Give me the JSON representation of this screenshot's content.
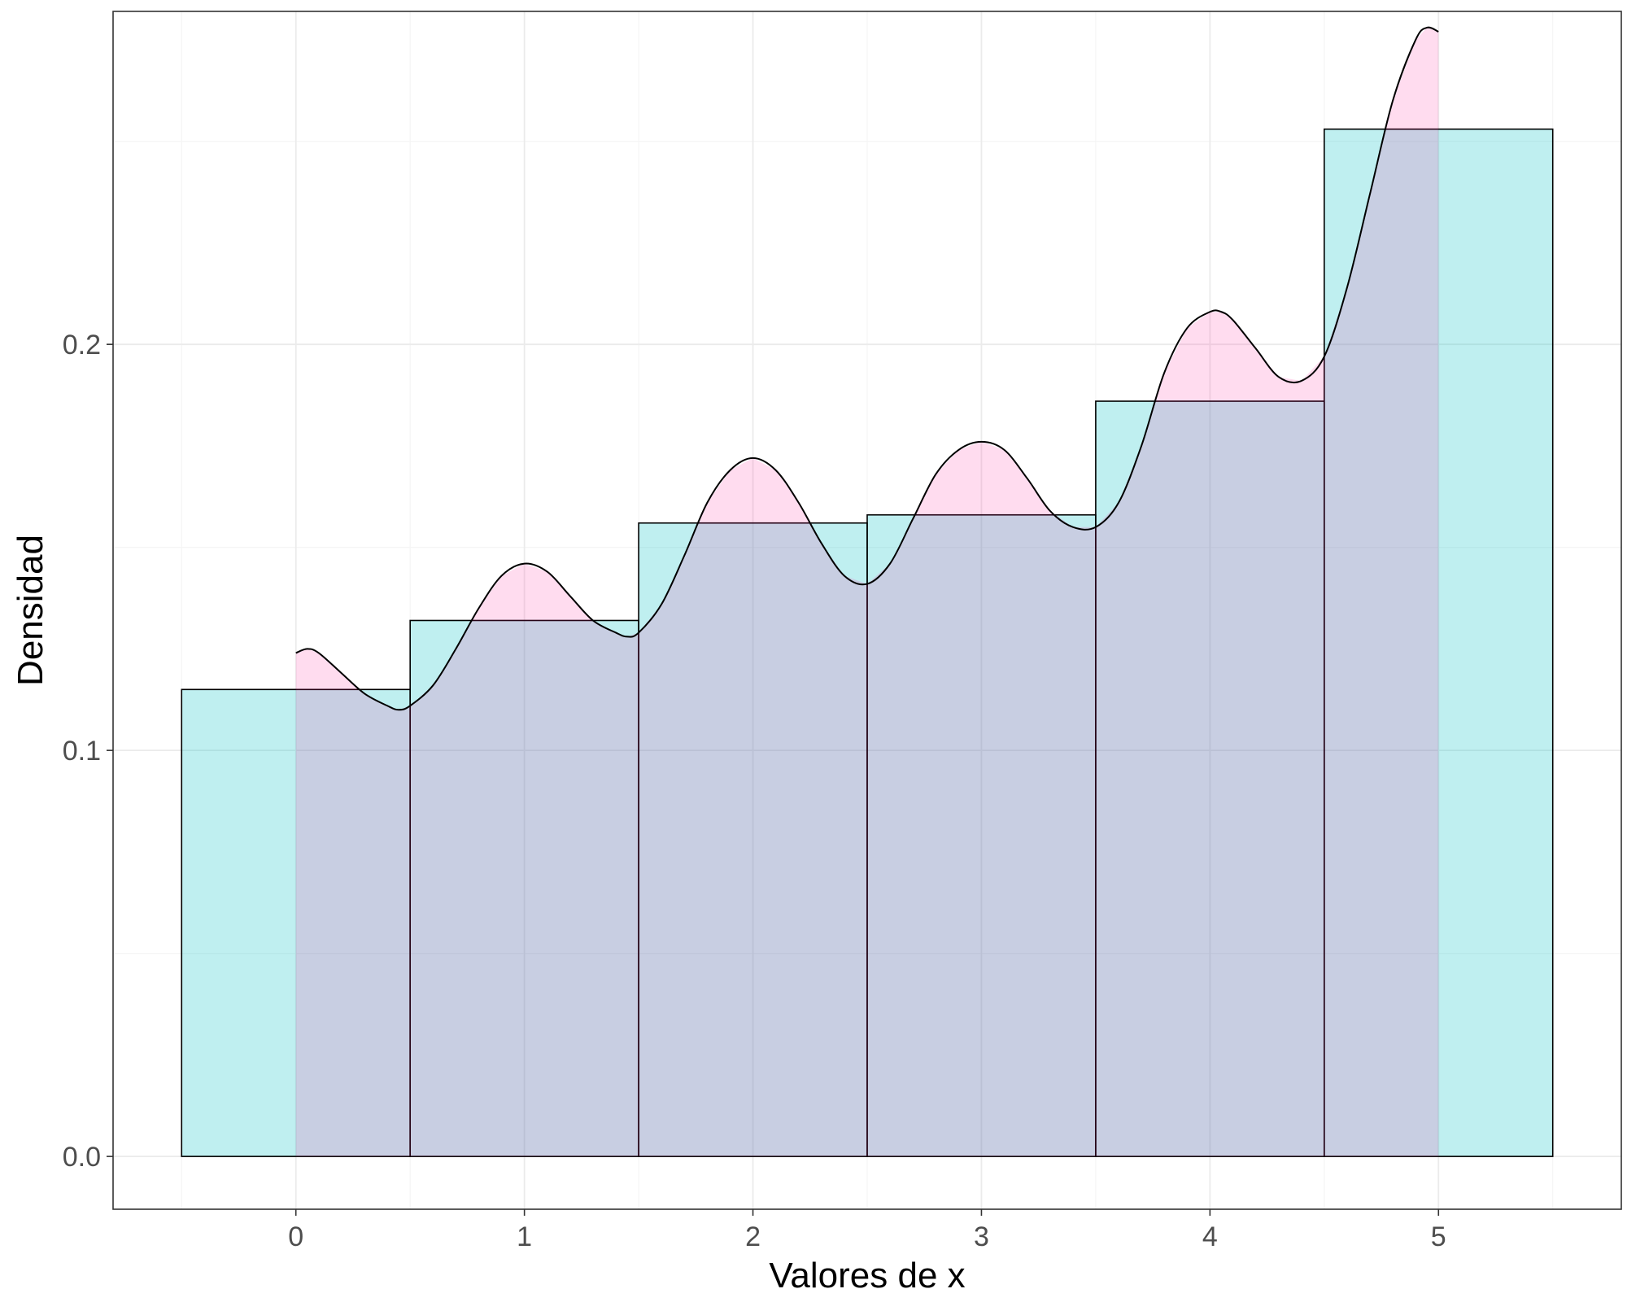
{
  "chart_data": {
    "type": "bar",
    "subtype": "histogram-with-density",
    "xlabel": "Valores de x",
    "ylabel": "Densidad",
    "xlim": [
      -0.8,
      5.8
    ],
    "ylim": [
      -0.013,
      0.282
    ],
    "x_ticks": [
      0,
      1,
      2,
      3,
      4,
      5
    ],
    "x_tick_labels": [
      "0",
      "1",
      "2",
      "3",
      "4",
      "5"
    ],
    "y_ticks": [
      0.0,
      0.1,
      0.2
    ],
    "y_tick_labels": [
      "0.0",
      "0.1",
      "0.2"
    ],
    "grid": true,
    "histogram": {
      "bins": [
        {
          "x": 0,
          "density": 0.115
        },
        {
          "x": 1,
          "density": 0.132
        },
        {
          "x": 2,
          "density": 0.156
        },
        {
          "x": 3,
          "density": 0.158
        },
        {
          "x": 4,
          "density": 0.186
        },
        {
          "x": 5,
          "density": 0.253
        }
      ],
      "binwidth": 1,
      "fill": "#00BFC4",
      "fill_opacity": 0.25,
      "stroke": "#000000"
    },
    "density": {
      "x": [
        0.0,
        0.05,
        0.1,
        0.2,
        0.3,
        0.4,
        0.45,
        0.5,
        0.6,
        0.7,
        0.8,
        0.9,
        1.0,
        1.1,
        1.2,
        1.3,
        1.4,
        1.45,
        1.5,
        1.6,
        1.7,
        1.8,
        1.9,
        2.0,
        2.1,
        2.2,
        2.3,
        2.4,
        2.5,
        2.6,
        2.7,
        2.8,
        2.9,
        3.0,
        3.1,
        3.2,
        3.3,
        3.4,
        3.5,
        3.6,
        3.7,
        3.8,
        3.9,
        4.0,
        4.05,
        4.1,
        4.2,
        4.3,
        4.4,
        4.5,
        4.6,
        4.7,
        4.8,
        4.9,
        4.95,
        5.0
      ],
      "y": [
        0.124,
        0.125,
        0.124,
        0.119,
        0.114,
        0.111,
        0.11,
        0.111,
        0.116,
        0.125,
        0.135,
        0.143,
        0.146,
        0.144,
        0.138,
        0.132,
        0.129,
        0.128,
        0.129,
        0.136,
        0.148,
        0.161,
        0.169,
        0.172,
        0.169,
        0.161,
        0.151,
        0.143,
        0.141,
        0.146,
        0.157,
        0.168,
        0.174,
        0.176,
        0.174,
        0.167,
        0.159,
        0.155,
        0.155,
        0.161,
        0.175,
        0.193,
        0.204,
        0.208,
        0.208,
        0.206,
        0.199,
        0.192,
        0.191,
        0.197,
        0.214,
        0.237,
        0.26,
        0.275,
        0.278,
        0.277
      ],
      "fill": "#F8766D",
      "fill_color": "#FF1493",
      "fill_opacity": 0.15,
      "stroke": "#000000"
    },
    "colors": {
      "panel_border": "#333333",
      "grid_major": "#EBEBEB",
      "grid_minor": "#F5F5F5",
      "tick_text": "#4D4D4D"
    }
  }
}
